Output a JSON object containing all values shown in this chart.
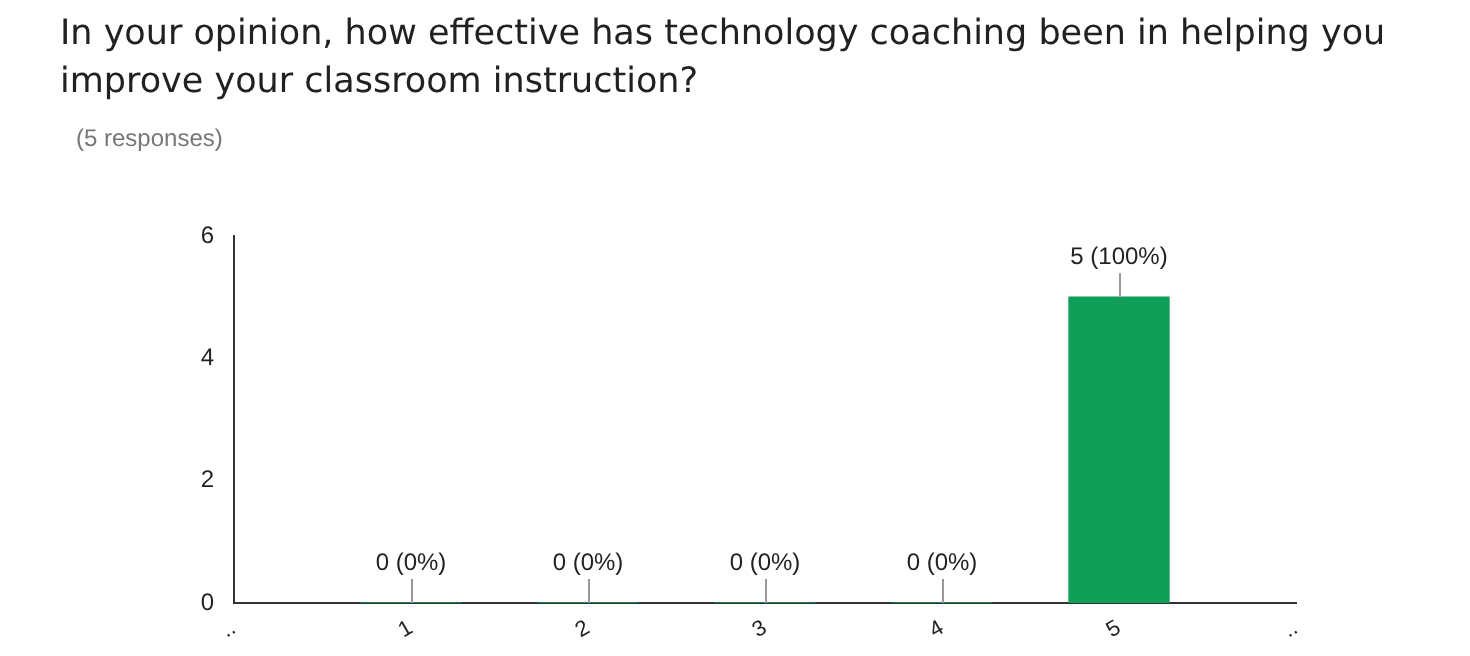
{
  "chart_data": {
    "type": "bar",
    "title": "In your opinion, how effective has technology coaching been in helping you improve your classroom instruction?",
    "subtitle": "(5 responses)",
    "x": [
      1,
      2,
      3,
      4,
      5
    ],
    "values": [
      0,
      0,
      0,
      0,
      5
    ],
    "color": "#0f9d58",
    "value_labels": [
      "0 (0%)",
      "0 (0%)",
      "0 (0%)",
      "0 (0%)",
      "5 (100%)"
    ],
    "xlim": [
      0,
      6
    ],
    "xticks": [
      {
        "value": 0,
        "label": ".."
      },
      1,
      2,
      3,
      4,
      5,
      {
        "value": 6,
        "label": ".."
      }
    ],
    "ylim": [
      0,
      6
    ],
    "yticks": [
      0,
      2,
      4,
      6
    ],
    "grid": false,
    "legend": false
  }
}
